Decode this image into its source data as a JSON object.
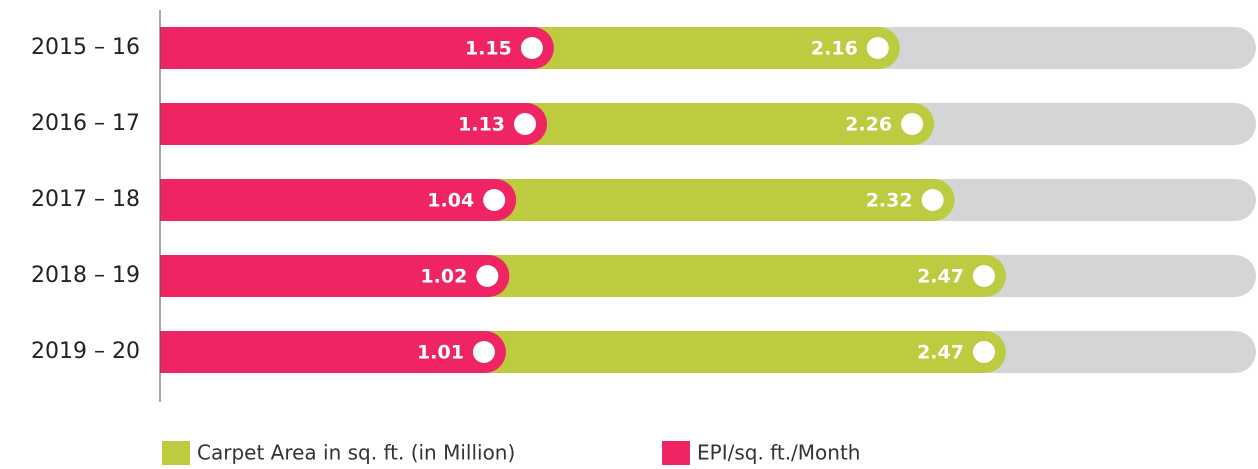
{
  "chart_data": {
    "type": "bar",
    "orientation": "horizontal",
    "overlap": true,
    "categories": [
      "2015 – 16",
      "2016 – 17",
      "2017 – 18",
      "2018 – 19",
      "2019 – 20"
    ],
    "series": [
      {
        "name": "Carpet Area in sq. ft. (in Million)",
        "color": "#bccb3f",
        "values": [
          2.16,
          2.26,
          2.32,
          2.47,
          2.47
        ]
      },
      {
        "name": "EPI/sq. ft./Month",
        "color": "#ef2462",
        "values": [
          1.15,
          1.13,
          1.04,
          1.02,
          1.01
        ]
      }
    ],
    "xlim": [
      0,
      3.2
    ],
    "track_color": "#d4d5d7"
  }
}
